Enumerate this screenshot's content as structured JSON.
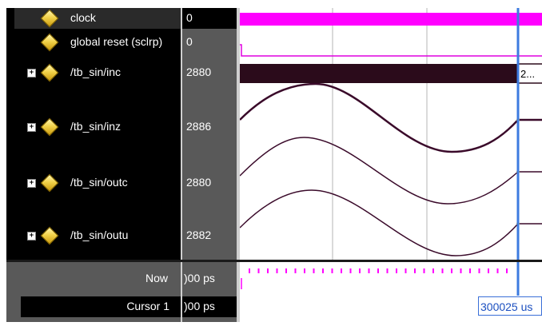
{
  "signals": [
    {
      "name": "clock",
      "value": "0",
      "expandable": false
    },
    {
      "name": "global reset (sclrp)",
      "value": "0",
      "expandable": false
    },
    {
      "name": "/tb_sin/inc",
      "value": "2880",
      "expandable": true
    },
    {
      "name": "/tb_sin/inz",
      "value": "2886",
      "expandable": true
    },
    {
      "name": "/tb_sin/outc",
      "value": "2880",
      "expandable": true
    },
    {
      "name": "/tb_sin/outu",
      "value": "2882",
      "expandable": true
    }
  ],
  "bus_value_label": "2...",
  "footer": {
    "now_label": "Now",
    "now_value": ")00 ps",
    "cursor_label": "Cursor 1",
    "cursor_value": ")00 ps",
    "cursor_time": "300025 us"
  },
  "colors": {
    "clock": "#ff00ff",
    "reset": "#e000e0",
    "bus": "#2b0b1b",
    "wave": "#3a0a2a",
    "cursor": "#3d7be0",
    "grid": "#b5b5b5"
  }
}
